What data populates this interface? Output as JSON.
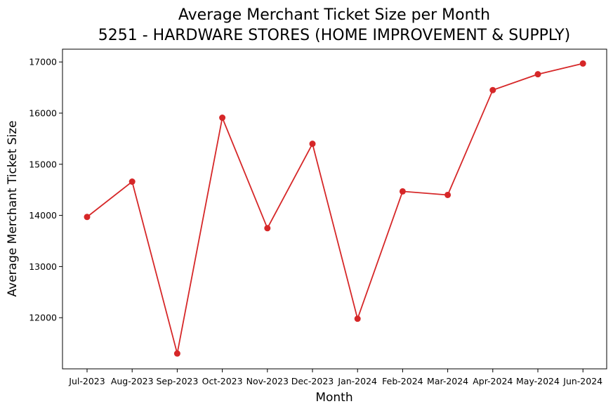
{
  "chart_data": {
    "type": "line",
    "title": "Average Merchant Ticket Size per Month",
    "subtitle": "5251 - HARDWARE STORES (HOME IMPROVEMENT & SUPPLY)",
    "xlabel": "Month",
    "ylabel": "Average Merchant Ticket Size",
    "categories": [
      "Jul-2023",
      "Aug-2023",
      "Sep-2023",
      "Oct-2023",
      "Nov-2023",
      "Dec-2023",
      "Jan-2024",
      "Feb-2024",
      "Mar-2024",
      "Apr-2024",
      "May-2024",
      "Jun-2024"
    ],
    "values": [
      13970,
      14660,
      11300,
      15910,
      13750,
      15400,
      11980,
      14470,
      14400,
      16450,
      16760,
      16970
    ],
    "ylim": [
      11000,
      17250
    ],
    "yticks": [
      12000,
      13000,
      14000,
      15000,
      16000,
      17000
    ],
    "grid": false,
    "legend": "none",
    "line_color": "#d62728",
    "marker": "circle"
  }
}
